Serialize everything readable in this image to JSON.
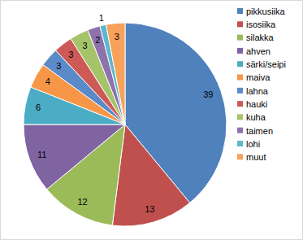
{
  "chart_data": {
    "type": "pie",
    "categories": [
      "pikkusiika",
      "isosiika",
      "silakka",
      "ahven",
      "särki/seipi",
      "maiva",
      "lahna",
      "hauki",
      "kuha",
      "taimen",
      "lohi",
      "muut"
    ],
    "values": [
      39,
      13,
      12,
      11,
      6,
      4,
      3,
      3,
      3,
      2,
      1,
      3
    ],
    "colors": [
      "#4f81bd",
      "#c0504d",
      "#9bbb59",
      "#8064a2",
      "#4bacc6",
      "#f79646",
      "#5b8ac8",
      "#cd5a57",
      "#a5c46a",
      "#8d72ae",
      "#5cb7cd",
      "#f8a15a"
    ],
    "data_labels": true,
    "legend": "right"
  }
}
